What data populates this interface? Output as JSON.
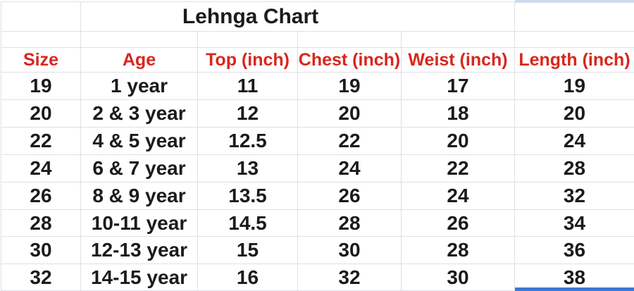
{
  "chart_data": {
    "type": "table",
    "title": "Lehnga Chart",
    "columns": [
      "Size",
      "Age",
      "Top (inch)",
      "Chest (inch)",
      "Weist (inch)",
      "Length (inch)"
    ],
    "rows": [
      [
        "19",
        "1 year",
        "11",
        "19",
        "17",
        "19"
      ],
      [
        "20",
        "2 & 3 year",
        "12",
        "20",
        "18",
        "20"
      ],
      [
        "22",
        "4 & 5 year",
        "12.5",
        "22",
        "20",
        "24"
      ],
      [
        "24",
        "6 & 7 year",
        "13",
        "24",
        "22",
        "28"
      ],
      [
        "26",
        "8 & 9 year",
        "13.5",
        "26",
        "24",
        "32"
      ],
      [
        "28",
        "10-11 year",
        "14.5",
        "28",
        "26",
        "34"
      ],
      [
        "30",
        "12-13 year",
        "15",
        "30",
        "28",
        "36"
      ],
      [
        "32",
        "14-15 year",
        "16",
        "32",
        "30",
        "38"
      ]
    ],
    "layout": "spreadsheet grid, all cells center-aligned, bold text, gridlines on"
  },
  "colors": {
    "header-text": "#d8261e",
    "ink": "#1b1b1b",
    "grid": "#dde0e3",
    "sel-top": "#cdd9ec",
    "sel-bottom": "#3c78d8"
  }
}
